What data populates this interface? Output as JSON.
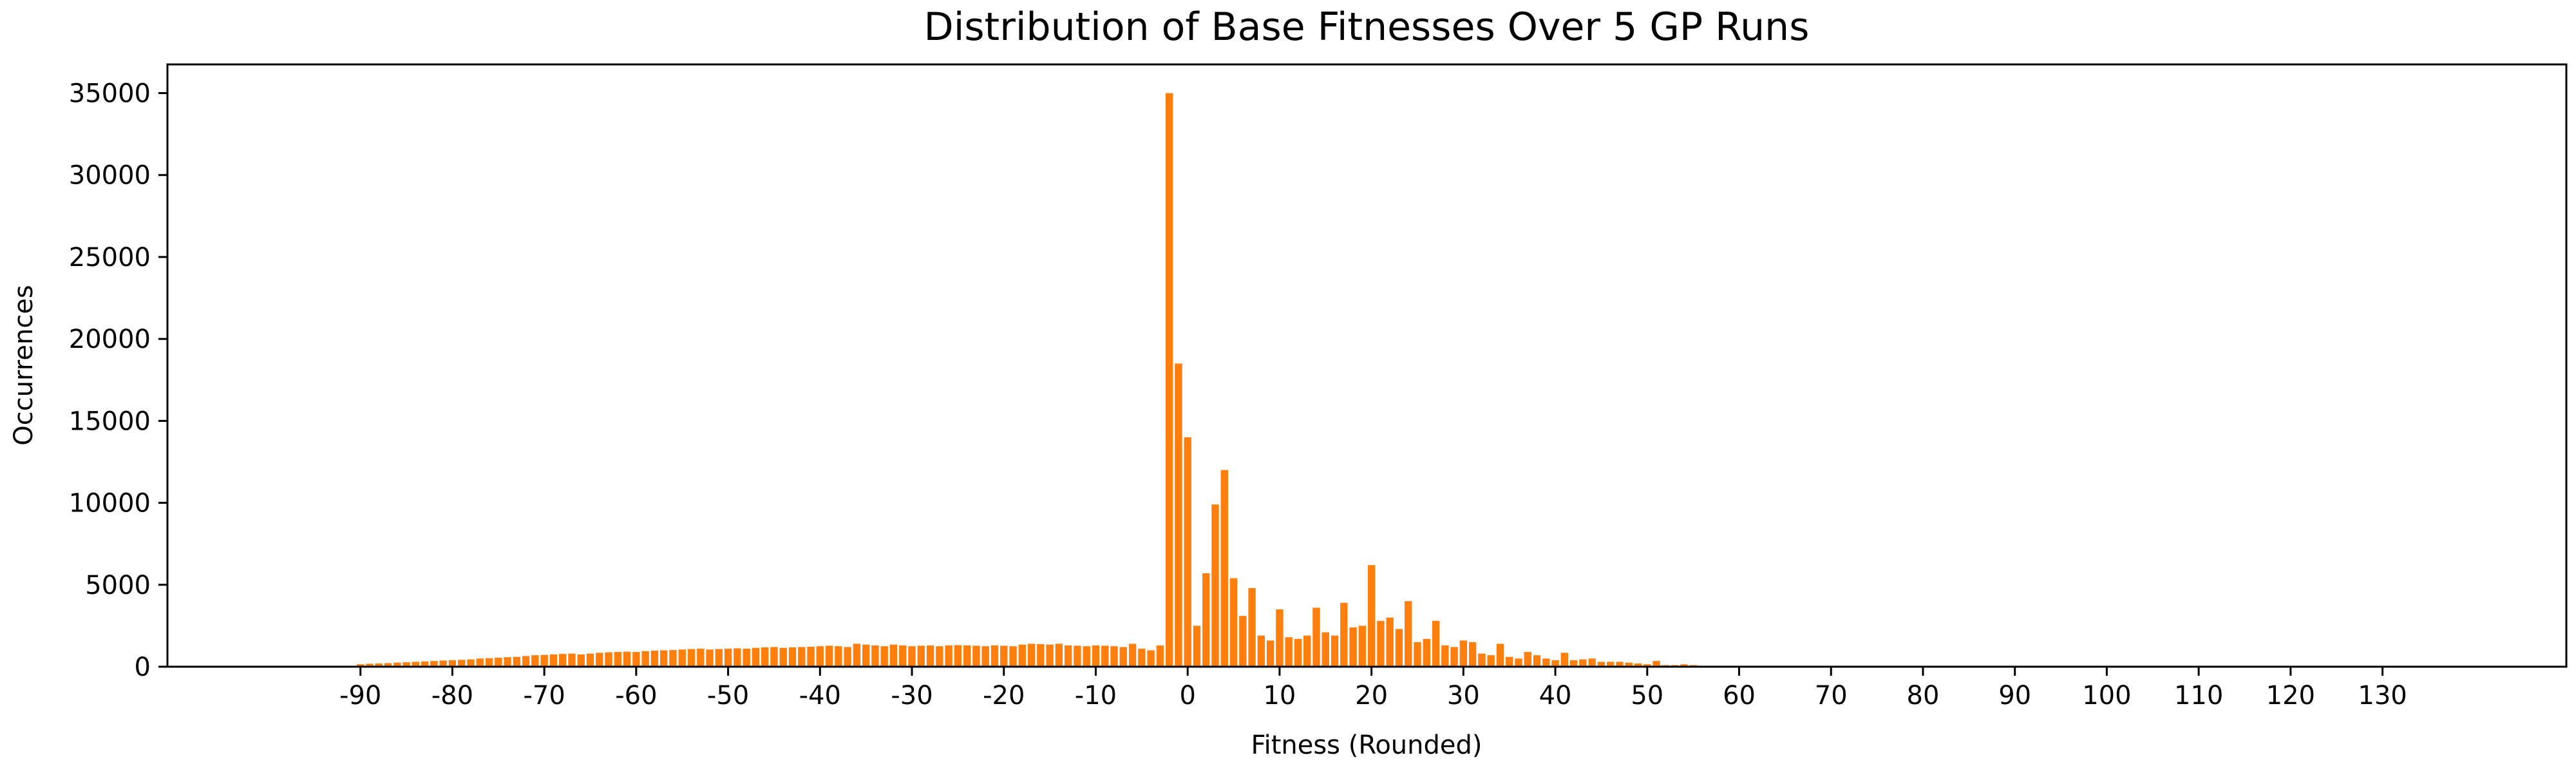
{
  "chart_data": {
    "type": "bar",
    "title": "Distribution of Base Fitnesses Over 5 GP Runs",
    "xlabel": "Fitness (Rounded)",
    "ylabel": "Occurrences",
    "xlim": [
      -111,
      150
    ],
    "ylim": [
      0,
      36750
    ],
    "xticks": [
      -90,
      -80,
      -70,
      -60,
      -50,
      -40,
      -30,
      -20,
      -10,
      0,
      10,
      20,
      30,
      40,
      50,
      60,
      70,
      80,
      90,
      100,
      110,
      120,
      130
    ],
    "yticks": [
      0,
      5000,
      10000,
      15000,
      20000,
      25000,
      30000,
      35000
    ],
    "grid": false,
    "legend": "none",
    "bar_color": "#ff7f0e",
    "x_start": -90,
    "values": [
      150,
      180,
      200,
      220,
      250,
      270,
      300,
      320,
      350,
      380,
      400,
      420,
      450,
      500,
      520,
      550,
      580,
      600,
      650,
      700,
      720,
      750,
      780,
      800,
      750,
      800,
      850,
      880,
      900,
      920,
      900,
      950,
      980,
      1000,
      1020,
      1050,
      1080,
      1100,
      1050,
      1080,
      1100,
      1120,
      1100,
      1150,
      1180,
      1200,
      1150,
      1180,
      1200,
      1220,
      1250,
      1280,
      1250,
      1200,
      1400,
      1350,
      1300,
      1250,
      1350,
      1300,
      1250,
      1280,
      1300,
      1250,
      1300,
      1320,
      1300,
      1280,
      1250,
      1300,
      1280,
      1250,
      1350,
      1400,
      1380,
      1350,
      1400,
      1300,
      1280,
      1250,
      1300,
      1280,
      1250,
      1200,
      1400,
      1100,
      1000,
      1300,
      35000,
      18500,
      14000,
      2500,
      5700,
      9900,
      12000,
      5400,
      3100,
      4800,
      1900,
      1600,
      3500,
      1800,
      1700,
      1900,
      3600,
      2100,
      1900,
      3900,
      2400,
      2500,
      6200,
      2800,
      3000,
      2300,
      4000,
      1500,
      1700,
      2800,
      1300,
      1200,
      1600,
      1500,
      800,
      700,
      1400,
      600,
      500,
      900,
      700,
      500,
      400,
      850,
      400,
      450,
      500,
      300,
      300,
      300,
      250,
      200,
      150,
      350,
      100,
      100,
      150,
      100,
      50,
      50,
      30,
      20,
      20,
      10,
      10,
      10,
      10,
      10,
      5,
      5,
      5,
      5,
      5,
      5,
      5,
      5,
      5,
      5,
      3,
      3,
      3,
      3,
      3,
      3,
      3,
      3,
      3,
      2,
      2,
      2,
      2,
      2,
      2,
      2,
      2,
      2,
      2,
      1,
      1,
      1,
      1,
      1,
      1,
      1,
      1,
      1,
      1,
      1,
      1,
      1,
      1,
      1,
      1,
      1,
      1,
      1,
      1,
      1,
      1,
      1,
      1,
      1,
      1,
      1,
      1,
      1,
      1,
      1,
      1,
      1,
      1,
      1,
      1
    ]
  }
}
